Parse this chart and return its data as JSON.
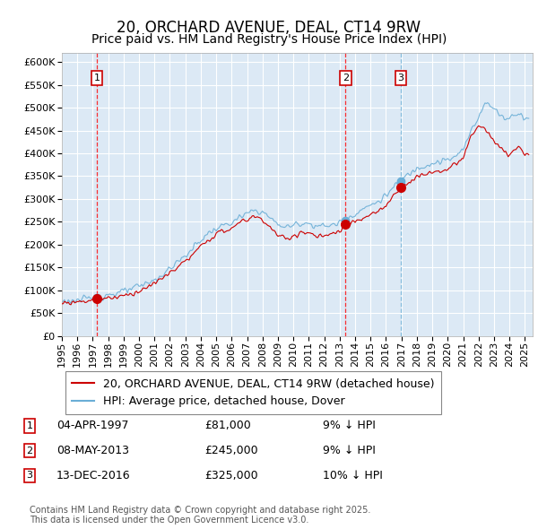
{
  "title": "20, ORCHARD AVENUE, DEAL, CT14 9RW",
  "subtitle": "Price paid vs. HM Land Registry's House Price Index (HPI)",
  "ylim": [
    0,
    620000
  ],
  "yticks": [
    0,
    50000,
    100000,
    150000,
    200000,
    250000,
    300000,
    350000,
    400000,
    450000,
    500000,
    550000,
    600000
  ],
  "xlim_start": 1995.0,
  "xlim_end": 2025.5,
  "bg_color": "#dce9f5",
  "grid_color": "#ffffff",
  "line_color_hpi": "#6aaed6",
  "line_color_paid": "#cc0000",
  "legend_label_paid": "20, ORCHARD AVENUE, DEAL, CT14 9RW (detached house)",
  "legend_label_hpi": "HPI: Average price, detached house, Dover",
  "transactions": [
    {
      "label": "1",
      "date": "04-APR-1997",
      "price": 81000,
      "year": 1997.27,
      "pct": "9%",
      "dir": "↓",
      "vline_color": "red"
    },
    {
      "label": "2",
      "date": "08-MAY-2013",
      "price": 245000,
      "year": 2013.37,
      "pct": "9%",
      "dir": "↓",
      "vline_color": "red"
    },
    {
      "label": "3",
      "date": "13-DEC-2016",
      "price": 325000,
      "year": 2016.96,
      "pct": "10%",
      "dir": "↓",
      "vline_color": "#6aaed6"
    }
  ],
  "footer": "Contains HM Land Registry data © Crown copyright and database right 2025.\nThis data is licensed under the Open Government Licence v3.0.",
  "title_fontsize": 12,
  "subtitle_fontsize": 10,
  "tick_fontsize": 8,
  "legend_fontsize": 9,
  "footer_fontsize": 7
}
